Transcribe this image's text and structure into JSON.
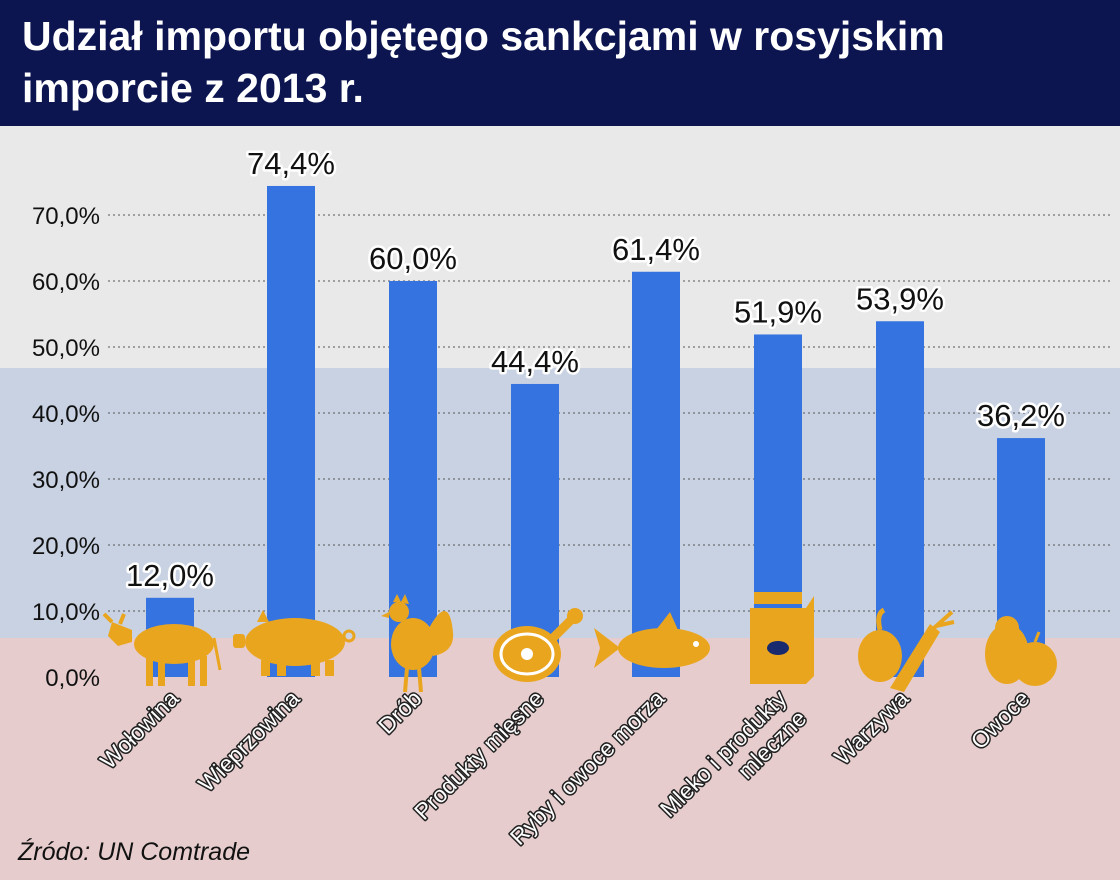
{
  "title": "Udział importu objętego sankcjami w rosyjskim imporcie z 2013 r.",
  "source": "Źródo: UN Comtrade",
  "colors": {
    "header": "#0c1550",
    "bar": "#3574e0",
    "icon": "#eaa51f",
    "band_white": "#e9e9e9",
    "band_blue": "#c9d2e3",
    "band_red": "#e6cccc"
  },
  "chart_data": {
    "type": "bar",
    "title": "Udział importu objętego sankcjami w rosyjskim imporcie z 2013 r.",
    "categories": [
      "Wołowina",
      "Wieprzowina",
      "Drób",
      "Produkty mięsne",
      "Ryby i owoce morza",
      "Mleko i produkty mleczne",
      "Warzywa",
      "Owoce"
    ],
    "category_lines": [
      [
        "Wołowina"
      ],
      [
        "Wieprzowina"
      ],
      [
        "Drób"
      ],
      [
        "Produkty mięsne"
      ],
      [
        "Ryby i owoce morza"
      ],
      [
        "Mleko i produkty",
        "mleczne"
      ],
      [
        "Warzywa"
      ],
      [
        "Owoce"
      ]
    ],
    "values": [
      12.0,
      74.4,
      60.0,
      44.4,
      61.4,
      51.9,
      53.9,
      36.2
    ],
    "data_labels": [
      "12,0%",
      "74,4%",
      "60,0%",
      "44,4%",
      "61,4%",
      "51,9%",
      "53,9%",
      "36,2%"
    ],
    "yticks": [
      "0,0%",
      "10,0%",
      "20,0%",
      "30,0%",
      "40,0%",
      "50,0%",
      "60,0%",
      "70,0%"
    ],
    "ylim": [
      0,
      70
    ],
    "grid": true,
    "icons": [
      "cow-icon",
      "pig-icon",
      "rooster-icon",
      "ham-icon",
      "fish-icon",
      "milk-carton-icon",
      "vegetables-icon",
      "fruit-icon"
    ]
  }
}
